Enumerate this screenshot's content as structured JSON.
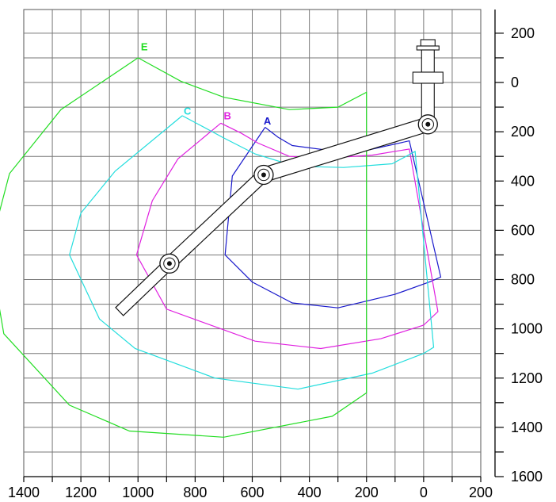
{
  "chart_data": {
    "type": "diagram",
    "x_axis": {
      "ticks": [
        {
          "value": 1400,
          "label": "1400"
        },
        {
          "value": 1200,
          "label": "1200"
        },
        {
          "value": 1000,
          "label": "1000"
        },
        {
          "value": 800,
          "label": "800"
        },
        {
          "value": 600,
          "label": "600"
        },
        {
          "value": 400,
          "label": "400"
        },
        {
          "value": 200,
          "label": "200"
        },
        {
          "value": 0,
          "label": "0"
        },
        {
          "value": -200,
          "label": "200"
        }
      ],
      "range": [
        1400,
        -200
      ],
      "reversed": true
    },
    "y_axis": {
      "ticks": [
        {
          "value": -200,
          "label": "200"
        },
        {
          "value": 0,
          "label": "0"
        },
        {
          "value": 200,
          "label": "200"
        },
        {
          "value": 400,
          "label": "400"
        },
        {
          "value": 600,
          "label": "600"
        },
        {
          "value": 800,
          "label": "800"
        },
        {
          "value": 1000,
          "label": "1000"
        },
        {
          "value": 1200,
          "label": "1200"
        },
        {
          "value": 1400,
          "label": "1400"
        },
        {
          "value": 1600,
          "label": "1600"
        }
      ],
      "range": [
        -300,
        1600
      ],
      "position": "right"
    },
    "grid": true,
    "envelopes": [
      {
        "name": "A",
        "color": "#1a1acc",
        "points": [
          [
            555,
            182
          ],
          [
            510,
            222
          ],
          [
            460,
            256
          ],
          [
            330,
            276
          ],
          [
            200,
            276
          ],
          [
            50,
            237
          ],
          [
            -60,
            790
          ],
          [
            -20,
            810
          ],
          [
            100,
            860
          ],
          [
            300,
            915
          ],
          [
            460,
            895
          ],
          [
            600,
            810
          ],
          [
            695,
            700
          ],
          [
            670,
            380
          ],
          [
            555,
            182
          ]
        ]
      },
      {
        "name": "B",
        "color": "#e020e0",
        "points": [
          [
            710,
            165
          ],
          [
            640,
            205
          ],
          [
            580,
            246
          ],
          [
            470,
            300
          ],
          [
            330,
            306
          ],
          [
            180,
            295
          ],
          [
            50,
            270
          ],
          [
            -50,
            930
          ],
          [
            0,
            985
          ],
          [
            150,
            1040
          ],
          [
            360,
            1080
          ],
          [
            590,
            1050
          ],
          [
            900,
            920
          ],
          [
            1005,
            700
          ],
          [
            950,
            480
          ],
          [
            860,
            310
          ],
          [
            710,
            165
          ]
        ]
      },
      {
        "name": "C",
        "color": "#22dddd",
        "points": [
          [
            845,
            135
          ],
          [
            780,
            175
          ],
          [
            700,
            225
          ],
          [
            590,
            290
          ],
          [
            450,
            340
          ],
          [
            280,
            345
          ],
          [
            110,
            330
          ],
          [
            30,
            280
          ],
          [
            -35,
            1075
          ],
          [
            0,
            1100
          ],
          [
            180,
            1180
          ],
          [
            440,
            1245
          ],
          [
            730,
            1200
          ],
          [
            1010,
            1080
          ],
          [
            1135,
            960
          ],
          [
            1240,
            700
          ],
          [
            1200,
            530
          ],
          [
            1080,
            360
          ],
          [
            845,
            135
          ]
        ]
      },
      {
        "name": "E",
        "color": "#22dd22",
        "points": [
          [
            1000,
            -100
          ],
          [
            850,
            -5
          ],
          [
            700,
            60
          ],
          [
            470,
            110
          ],
          [
            300,
            100
          ],
          [
            200,
            40
          ],
          [
            200,
            1260
          ],
          [
            320,
            1355
          ],
          [
            700,
            1440
          ],
          [
            1030,
            1415
          ],
          [
            1240,
            1310
          ],
          [
            1470,
            1020
          ],
          [
            1520,
            680
          ],
          [
            1450,
            370
          ],
          [
            1270,
            110
          ],
          [
            1000,
            -100
          ]
        ]
      }
    ],
    "envelope_labels": [
      {
        "name": "A",
        "text": "A",
        "x": 560,
        "y": 170
      },
      {
        "name": "B",
        "text": "B",
        "x": 700,
        "y": 150
      },
      {
        "name": "C",
        "text": "C",
        "x": 840,
        "y": 130
      },
      {
        "name": "E",
        "text": "E",
        "x": 990,
        "y": -130
      }
    ],
    "arm": {
      "base_pivot": [
        -15,
        170
      ],
      "mid_pivot": [
        560,
        375
      ],
      "tool_pivot": [
        890,
        735
      ],
      "boom_end": [
        1065,
        930
      ]
    }
  }
}
